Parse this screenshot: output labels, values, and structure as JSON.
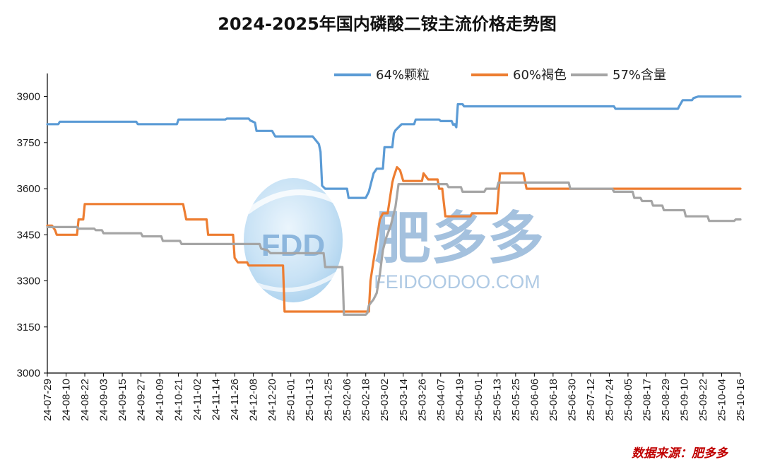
{
  "chart_data": {
    "type": "line",
    "title": "2024-2025年国内磷酸二铵主流价格走势图",
    "source_text": "数据来源：肥多多",
    "watermark": {
      "logo_text": "FDD",
      "brand_cn": "肥多多",
      "brand_en": "FEIDOODOO.COM"
    },
    "ylim": [
      3000,
      3975
    ],
    "yticks": [
      3000,
      3150,
      3300,
      3450,
      3600,
      3750,
      3900
    ],
    "x_start": "2024-07-29",
    "x_end": "2025-10-16",
    "xticks": [
      "24-07-29",
      "24-08-10",
      "24-08-22",
      "24-09-03",
      "24-09-15",
      "24-09-27",
      "24-10-09",
      "24-10-21",
      "24-11-02",
      "24-11-14",
      "24-11-26",
      "24-12-08",
      "24-12-20",
      "25-01-01",
      "25-01-13",
      "25-01-25",
      "25-02-06",
      "25-02-18",
      "25-03-02",
      "25-03-14",
      "25-03-26",
      "25-04-07",
      "25-04-19",
      "25-05-01",
      "25-05-13",
      "25-05-25",
      "25-06-06",
      "25-06-18",
      "25-06-30",
      "25-07-12",
      "25-07-24",
      "25-08-05",
      "25-08-17",
      "25-08-29",
      "25-09-10",
      "25-09-22",
      "25-10-04",
      "25-10-16"
    ],
    "legend_position": "top-right",
    "grid": false,
    "series": [
      {
        "name": "64%颗粒",
        "color": "#5b9bd5",
        "points": [
          [
            "2024-07-29",
            3810
          ],
          [
            "2024-08-05",
            3810
          ],
          [
            "2024-08-06",
            3818
          ],
          [
            "2024-09-24",
            3818
          ],
          [
            "2024-09-25",
            3810
          ],
          [
            "2024-10-20",
            3810
          ],
          [
            "2024-10-21",
            3825
          ],
          [
            "2024-11-20",
            3825
          ],
          [
            "2024-11-21",
            3828
          ],
          [
            "2024-12-05",
            3828
          ],
          [
            "2024-12-06",
            3822
          ],
          [
            "2024-12-09",
            3815
          ],
          [
            "2024-12-10",
            3788
          ],
          [
            "2024-12-20",
            3788
          ],
          [
            "2024-12-22",
            3770
          ],
          [
            "2025-01-12",
            3770
          ],
          [
            "2025-01-15",
            3770
          ],
          [
            "2025-01-19",
            3745
          ],
          [
            "2025-01-20",
            3720
          ],
          [
            "2025-01-21",
            3610
          ],
          [
            "2025-01-23",
            3600
          ],
          [
            "2025-02-06",
            3600
          ],
          [
            "2025-02-07",
            3570
          ],
          [
            "2025-02-18",
            3570
          ],
          [
            "2025-02-20",
            3590
          ],
          [
            "2025-02-23",
            3650
          ],
          [
            "2025-02-25",
            3665
          ],
          [
            "2025-03-01",
            3665
          ],
          [
            "2025-03-02",
            3735
          ],
          [
            "2025-03-07",
            3735
          ],
          [
            "2025-03-08",
            3780
          ],
          [
            "2025-03-09",
            3790
          ],
          [
            "2025-03-11",
            3800
          ],
          [
            "2025-03-13",
            3810
          ],
          [
            "2025-03-21",
            3810
          ],
          [
            "2025-03-22",
            3825
          ],
          [
            "2025-04-06",
            3825
          ],
          [
            "2025-04-07",
            3820
          ],
          [
            "2025-04-14",
            3820
          ],
          [
            "2025-04-15",
            3808
          ],
          [
            "2025-04-16",
            3810
          ],
          [
            "2025-04-17",
            3800
          ],
          [
            "2025-04-18",
            3875
          ],
          [
            "2025-04-21",
            3875
          ],
          [
            "2025-04-22",
            3868
          ],
          [
            "2025-07-27",
            3868
          ],
          [
            "2025-07-28",
            3860
          ],
          [
            "2025-09-06",
            3860
          ],
          [
            "2025-09-07",
            3870
          ],
          [
            "2025-09-09",
            3888
          ],
          [
            "2025-09-15",
            3888
          ],
          [
            "2025-09-16",
            3895
          ],
          [
            "2025-09-19",
            3900
          ],
          [
            "2025-10-16",
            3900
          ]
        ]
      },
      {
        "name": "60%褐色",
        "color": "#ed7d31",
        "points": [
          [
            "2024-07-29",
            3480
          ],
          [
            "2024-08-01",
            3480
          ],
          [
            "2024-08-03",
            3465
          ],
          [
            "2024-08-04",
            3450
          ],
          [
            "2024-08-17",
            3450
          ],
          [
            "2024-08-18",
            3500
          ],
          [
            "2024-08-21",
            3500
          ],
          [
            "2024-08-22",
            3550
          ],
          [
            "2024-10-24",
            3550
          ],
          [
            "2024-10-26",
            3500
          ],
          [
            "2024-11-08",
            3500
          ],
          [
            "2024-11-09",
            3450
          ],
          [
            "2024-11-25",
            3450
          ],
          [
            "2024-11-26",
            3375
          ],
          [
            "2024-11-28",
            3360
          ],
          [
            "2024-12-04",
            3360
          ],
          [
            "2024-12-05",
            3350
          ],
          [
            "2024-12-27",
            3350
          ],
          [
            "2024-12-28",
            3200
          ],
          [
            "2025-02-17",
            3200
          ],
          [
            "2025-02-20",
            3200
          ],
          [
            "2025-02-21",
            3300
          ],
          [
            "2025-02-24",
            3400
          ],
          [
            "2025-02-27",
            3500
          ],
          [
            "2025-03-01",
            3520
          ],
          [
            "2025-03-04",
            3520
          ],
          [
            "2025-03-07",
            3620
          ],
          [
            "2025-03-08",
            3640
          ],
          [
            "2025-03-10",
            3670
          ],
          [
            "2025-03-12",
            3660
          ],
          [
            "2025-03-14",
            3625
          ],
          [
            "2025-03-26",
            3625
          ],
          [
            "2025-03-27",
            3650
          ],
          [
            "2025-03-30",
            3630
          ],
          [
            "2025-04-05",
            3630
          ],
          [
            "2025-04-06",
            3600
          ],
          [
            "2025-04-08",
            3600
          ],
          [
            "2025-04-10",
            3510
          ],
          [
            "2025-04-26",
            3510
          ],
          [
            "2025-04-27",
            3520
          ],
          [
            "2025-05-13",
            3520
          ],
          [
            "2025-05-15",
            3650
          ],
          [
            "2025-05-30",
            3650
          ],
          [
            "2025-06-01",
            3600
          ],
          [
            "2025-10-16",
            3600
          ]
        ]
      },
      {
        "name": "57%含量",
        "color": "#a5a5a5",
        "points": [
          [
            "2024-07-29",
            3475
          ],
          [
            "2024-08-17",
            3475
          ],
          [
            "2024-08-18",
            3470
          ],
          [
            "2024-08-28",
            3470
          ],
          [
            "2024-08-29",
            3465
          ],
          [
            "2024-09-02",
            3465
          ],
          [
            "2024-09-03",
            3455
          ],
          [
            "2024-09-27",
            3455
          ],
          [
            "2024-09-28",
            3445
          ],
          [
            "2024-10-10",
            3445
          ],
          [
            "2024-10-11",
            3430
          ],
          [
            "2024-10-22",
            3430
          ],
          [
            "2024-10-23",
            3420
          ],
          [
            "2024-12-12",
            3420
          ],
          [
            "2024-12-13",
            3405
          ],
          [
            "2024-12-17",
            3400
          ],
          [
            "2024-12-19",
            3390
          ],
          [
            "2025-01-22",
            3390
          ],
          [
            "2025-01-23",
            3345
          ],
          [
            "2025-02-03",
            3345
          ],
          [
            "2025-02-04",
            3190
          ],
          [
            "2025-02-18",
            3190
          ],
          [
            "2025-02-19",
            3195
          ],
          [
            "2025-02-20",
            3220
          ],
          [
            "2025-02-23",
            3240
          ],
          [
            "2025-02-25",
            3260
          ],
          [
            "2025-02-27",
            3320
          ],
          [
            "2025-03-01",
            3400
          ],
          [
            "2025-03-03",
            3440
          ],
          [
            "2025-03-06",
            3480
          ],
          [
            "2025-03-09",
            3540
          ],
          [
            "2025-03-11",
            3615
          ],
          [
            "2025-04-11",
            3615
          ],
          [
            "2025-04-12",
            3605
          ],
          [
            "2025-04-20",
            3605
          ],
          [
            "2025-04-21",
            3590
          ],
          [
            "2025-05-05",
            3590
          ],
          [
            "2025-05-06",
            3600
          ],
          [
            "2025-05-13",
            3600
          ],
          [
            "2025-05-14",
            3620
          ],
          [
            "2025-06-28",
            3620
          ],
          [
            "2025-06-29",
            3600
          ],
          [
            "2025-07-26",
            3600
          ],
          [
            "2025-07-27",
            3590
          ],
          [
            "2025-08-08",
            3590
          ],
          [
            "2025-08-09",
            3570
          ],
          [
            "2025-08-13",
            3570
          ],
          [
            "2025-08-14",
            3560
          ],
          [
            "2025-08-20",
            3560
          ],
          [
            "2025-08-21",
            3545
          ],
          [
            "2025-08-27",
            3545
          ],
          [
            "2025-08-28",
            3530
          ],
          [
            "2025-09-10",
            3530
          ],
          [
            "2025-09-11",
            3510
          ],
          [
            "2025-09-25",
            3510
          ],
          [
            "2025-09-26",
            3495
          ],
          [
            "2025-10-06",
            3495
          ],
          [
            "2025-10-12",
            3495
          ],
          [
            "2025-10-13",
            3500
          ],
          [
            "2025-10-16",
            3500
          ]
        ]
      }
    ]
  }
}
